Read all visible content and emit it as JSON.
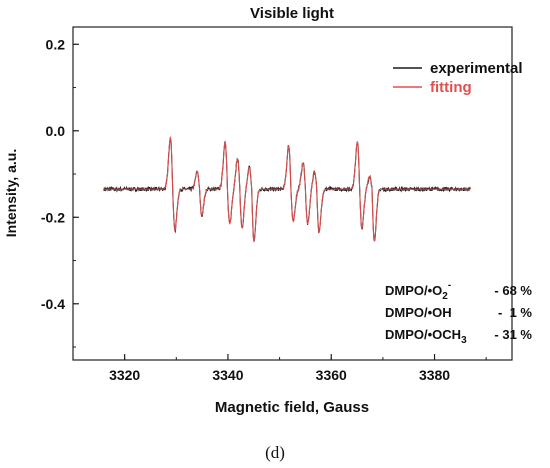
{
  "chart_data": {
    "type": "line",
    "title": "Visible light",
    "xlabel": "Magnetic field, Gauss",
    "ylabel": "Intensity, a.u.",
    "xlim": [
      3310,
      3395
    ],
    "ylim": [
      -0.53,
      0.24
    ],
    "xticks": [
      "3320",
      "3340",
      "3360",
      "3380"
    ],
    "yticks": [
      "-0.4",
      "-0.2",
      "0.0",
      "0.2"
    ],
    "baseline": -0.135,
    "x_start": 3316,
    "x_end": 3387,
    "series": [
      {
        "name": "experimental",
        "color": "#1a1a1a"
      },
      {
        "name": "fitting",
        "color": "#e05050"
      }
    ],
    "peaks": [
      {
        "x": 3329.3,
        "up": 0.12,
        "down": 0.095
      },
      {
        "x": 3334.5,
        "up": 0.04,
        "down": 0.06
      },
      {
        "x": 3339.9,
        "up": 0.11,
        "down": 0.08
      },
      {
        "x": 3342.3,
        "up": 0.07,
        "down": 0.09
      },
      {
        "x": 3344.6,
        "up": 0.05,
        "down": 0.12
      },
      {
        "x": 3352.2,
        "up": 0.1,
        "down": 0.075
      },
      {
        "x": 3355.0,
        "up": 0.06,
        "down": 0.08
      },
      {
        "x": 3357.2,
        "up": 0.04,
        "down": 0.1
      },
      {
        "x": 3365.5,
        "up": 0.11,
        "down": 0.09
      },
      {
        "x": 3367.9,
        "up": 0.03,
        "down": 0.12
      }
    ],
    "components": [
      {
        "label": "DMPO/•O",
        "sub": "2",
        "sup": "-",
        "value": "- 68 %"
      },
      {
        "label": "DMPO/•OH",
        "sub": "",
        "sup": "",
        "value": "-  1 %"
      },
      {
        "label": "DMPO/•OCH",
        "sub": "3",
        "sup": "",
        "value": "- 31 %"
      }
    ]
  },
  "panel_label": "(d)"
}
